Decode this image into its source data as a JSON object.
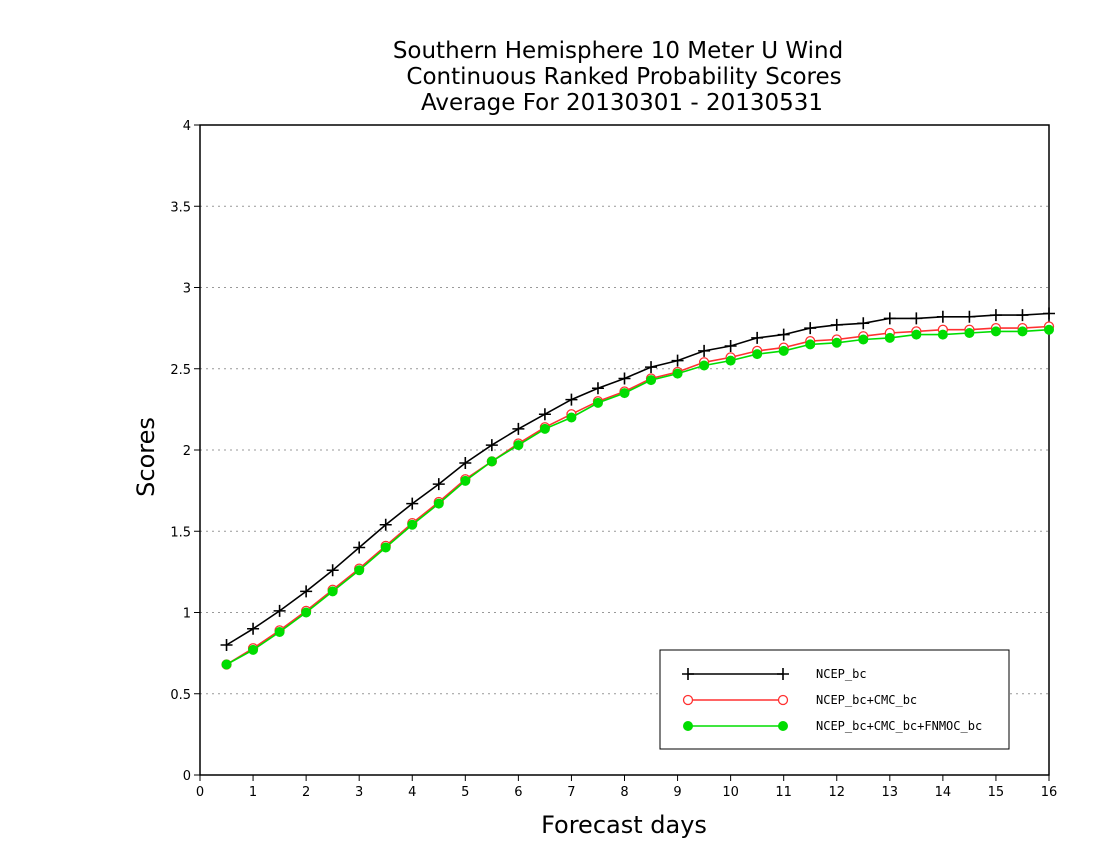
{
  "chart_data": {
    "type": "line",
    "title_lines": [
      "Southern Hemisphere 10 Meter U Wind",
      "Continuous Ranked Probability Scores",
      "Average For 20130301 - 20130531"
    ],
    "xlabel": "Forecast days",
    "ylabel": "Scores",
    "xlim": [
      0,
      16
    ],
    "ylim": [
      0,
      4
    ],
    "xticks": [
      0,
      1,
      2,
      3,
      4,
      5,
      6,
      7,
      8,
      9,
      10,
      11,
      12,
      13,
      14,
      15,
      16
    ],
    "yticks": [
      0,
      0.5,
      1,
      1.5,
      2,
      2.5,
      3,
      3.5,
      4
    ],
    "ytick_labels": [
      "0",
      "0.5",
      "1",
      "1.5",
      "2",
      "2.5",
      "3",
      "3.5",
      "4"
    ],
    "grid": "horizontal dotted",
    "legend_position": "bottom-right",
    "x": [
      0.5,
      1,
      1.5,
      2,
      2.5,
      3,
      3.5,
      4,
      4.5,
      5,
      5.5,
      6,
      6.5,
      7,
      7.5,
      8,
      8.5,
      9,
      9.5,
      10,
      10.5,
      11,
      11.5,
      12,
      12.5,
      13,
      13.5,
      14,
      14.5,
      15,
      15.5,
      16
    ],
    "series": [
      {
        "name": "NCEP_bc",
        "color": "#000000",
        "marker": "plus",
        "values": [
          0.8,
          0.9,
          1.01,
          1.13,
          1.26,
          1.4,
          1.54,
          1.67,
          1.79,
          1.92,
          2.03,
          2.13,
          2.22,
          2.31,
          2.38,
          2.44,
          2.51,
          2.55,
          2.61,
          2.64,
          2.69,
          2.71,
          2.75,
          2.77,
          2.78,
          2.81,
          2.81,
          2.82,
          2.82,
          2.83,
          2.83,
          2.84
        ]
      },
      {
        "name": "NCEP_bc+CMC_bc",
        "color": "#ff3030",
        "marker": "open-circle",
        "values": [
          0.68,
          0.78,
          0.89,
          1.01,
          1.14,
          1.27,
          1.41,
          1.55,
          1.68,
          1.82,
          1.93,
          2.04,
          2.14,
          2.22,
          2.3,
          2.36,
          2.44,
          2.48,
          2.54,
          2.57,
          2.61,
          2.63,
          2.67,
          2.68,
          2.7,
          2.72,
          2.73,
          2.74,
          2.74,
          2.75,
          2.75,
          2.76
        ]
      },
      {
        "name": "NCEP_bc+CMC_bc+FNMOC_bc",
        "color": "#00dd00",
        "marker": "filled-circle",
        "values": [
          0.68,
          0.77,
          0.88,
          1.0,
          1.13,
          1.26,
          1.4,
          1.54,
          1.67,
          1.81,
          1.93,
          2.03,
          2.13,
          2.2,
          2.29,
          2.35,
          2.43,
          2.47,
          2.52,
          2.55,
          2.59,
          2.61,
          2.65,
          2.66,
          2.68,
          2.69,
          2.71,
          2.71,
          2.72,
          2.73,
          2.73,
          2.74
        ]
      }
    ]
  }
}
